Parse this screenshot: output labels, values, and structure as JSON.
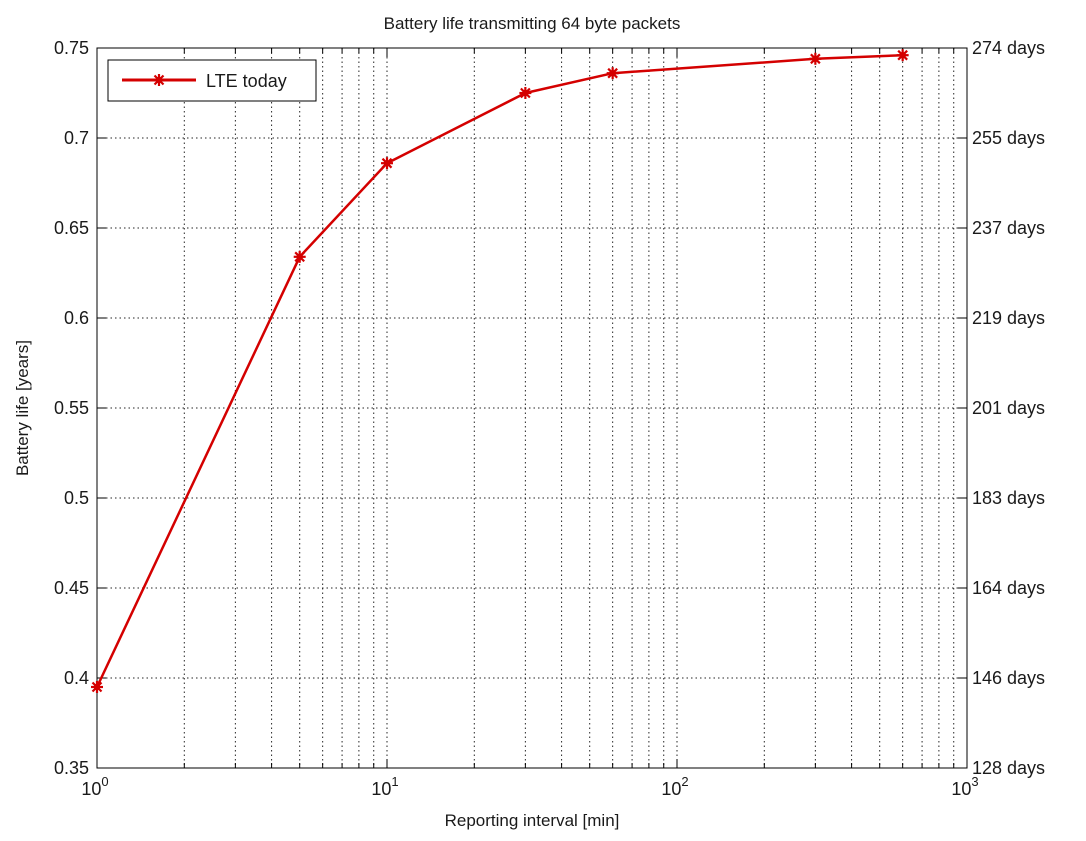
{
  "chart_data": {
    "type": "line",
    "title": "Battery life transmitting 64 byte packets",
    "xlabel": "Reporting interval [min]",
    "ylabel": "Battery life [years]",
    "xscale": "log",
    "xlim": [
      1,
      1000
    ],
    "ylim": [
      0.35,
      0.75
    ],
    "grid": true,
    "legend_position": "top-left",
    "x_tick_labels": [
      {
        "base": "10",
        "exp": "0"
      },
      {
        "base": "10",
        "exp": "1"
      },
      {
        "base": "10",
        "exp": "2"
      },
      {
        "base": "10",
        "exp": "3"
      }
    ],
    "y_ticks": [
      0.35,
      0.4,
      0.45,
      0.5,
      0.55,
      0.6,
      0.65,
      0.7,
      0.75
    ],
    "y_tick_labels": [
      "0.35",
      "0.4",
      "0.45",
      "0.5",
      "0.55",
      "0.6",
      "0.65",
      "0.7",
      "0.75"
    ],
    "y2_tick_labels": [
      "128 days",
      "146 days",
      "164 days",
      "183 days",
      "201 days",
      "219 days",
      "237 days",
      "255 days",
      "274 days"
    ],
    "series": [
      {
        "name": "LTE today",
        "color": "#d40000",
        "marker": "asterisk",
        "x": [
          1,
          5,
          10,
          30,
          60,
          300,
          600
        ],
        "y": [
          0.395,
          0.634,
          0.686,
          0.725,
          0.736,
          0.744,
          0.746
        ]
      }
    ]
  }
}
